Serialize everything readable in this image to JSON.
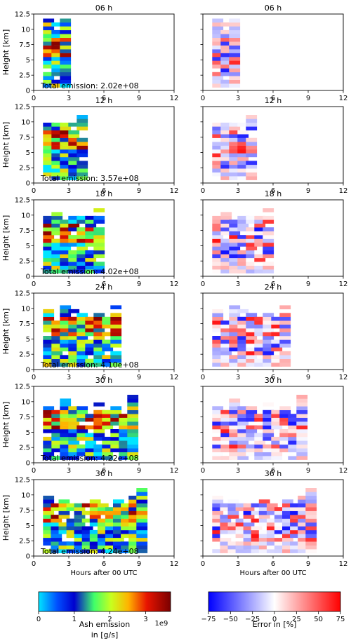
{
  "chart_data": {
    "type": "heatmap",
    "x_label": "Hours after 00 UTC",
    "y_label": "Height [km]",
    "x_ticks": [
      0,
      3,
      6,
      9,
      12
    ],
    "y_ticks": [
      0,
      2.5,
      5,
      7.5,
      10,
      12.5
    ],
    "x_tick_labels": [
      "0",
      "3",
      "6",
      "9",
      "12"
    ],
    "y_tick_labels": [
      "0",
      "2.5",
      "5",
      "7.5",
      "10",
      "12.5"
    ],
    "xlim": [
      0,
      12
    ],
    "ylim": [
      0,
      12.5
    ],
    "panels": [
      {
        "title": "06 h",
        "total_emission": "Total emission: 2.02e+08",
        "hours": 6
      },
      {
        "title": "12 h",
        "total_emission": "Total emission: 3.57e+08",
        "hours": 12
      },
      {
        "title": "18 h",
        "total_emission": "Total emission: 4.02e+08",
        "hours": 18
      },
      {
        "title": "24 h",
        "total_emission": "Total emission: 4.10e+08",
        "hours": 24
      },
      {
        "title": "30 h",
        "total_emission": "Total emission: 4.22e+08",
        "hours": 30
      },
      {
        "title": "36 h",
        "total_emission": "Total emission: 4.24e+08",
        "hours": 36
      }
    ],
    "colorbar_ash": {
      "label_line1": "Ash emission",
      "label_line2": "in [g/s]",
      "ticks": [
        "0",
        "1",
        "2",
        "3"
      ],
      "tick_values": [
        0,
        1,
        2,
        3
      ],
      "range": [
        0,
        3.7
      ],
      "multiplier": "1e9",
      "colormap": "jet"
    },
    "colorbar_error": {
      "label": "Error in [%]",
      "ticks": [
        "−75",
        "−50",
        "−25",
        "0",
        "25",
        "50",
        "75"
      ],
      "tick_values": [
        -75,
        -50,
        -25,
        0,
        25,
        50,
        75
      ],
      "range": [
        -75,
        75
      ],
      "colormap": "bwr"
    }
  }
}
